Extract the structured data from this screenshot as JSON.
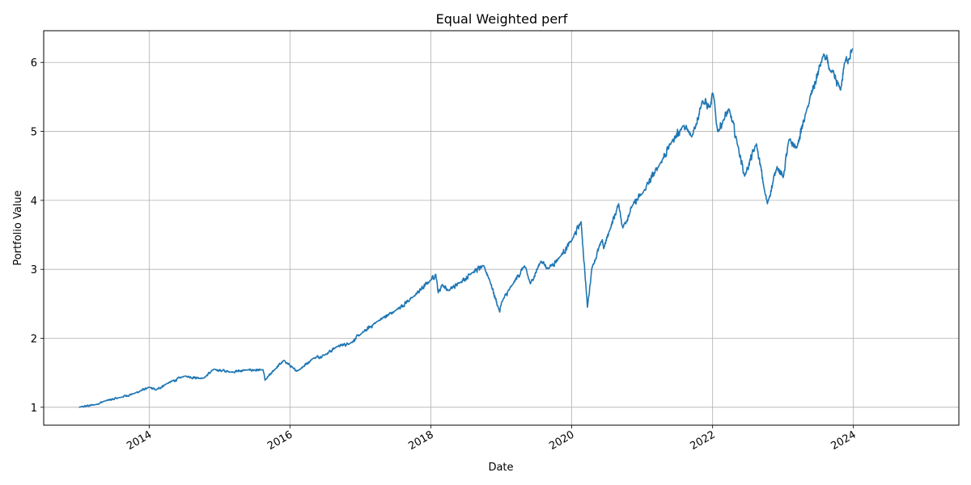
{
  "chart_data": {
    "type": "line",
    "title": "Equal Weighted perf",
    "xlabel": "Date",
    "ylabel": "Portfolio Value",
    "x_ticks": [
      "2014",
      "2016",
      "2018",
      "2020",
      "2022",
      "2024"
    ],
    "y_ticks": [
      "1",
      "2",
      "3",
      "4",
      "5",
      "6"
    ],
    "xlim": [
      "2012-07-03",
      "2025-07-01"
    ],
    "ylim": [
      0.74,
      6.46
    ],
    "grid": true,
    "series": [
      {
        "color": "#1f77b4",
        "x": [
          "2013-01-02",
          "2013-04-01",
          "2013-05-15",
          "2013-08-01",
          "2013-10-15",
          "2014-01-02",
          "2014-02-05",
          "2014-04-01",
          "2014-07-01",
          "2014-10-10",
          "2014-12-01",
          "2015-03-01",
          "2015-05-20",
          "2015-08-15",
          "2015-08-25",
          "2015-10-15",
          "2015-12-01",
          "2016-01-20",
          "2016-02-11",
          "2016-05-01",
          "2016-07-01",
          "2016-09-01",
          "2016-11-10",
          "2017-01-02",
          "2017-04-01",
          "2017-07-01",
          "2017-10-01",
          "2018-01-02",
          "2018-01-26",
          "2018-02-08",
          "2018-03-01",
          "2018-04-02",
          "2018-06-01",
          "2018-08-01",
          "2018-10-03",
          "2018-11-01",
          "2018-12-24",
          "2019-01-02",
          "2019-03-01",
          "2019-05-01",
          "2019-06-01",
          "2019-07-26",
          "2019-09-01",
          "2019-11-01",
          "2020-01-02",
          "2020-02-19",
          "2020-03-23",
          "2020-04-15",
          "2020-06-08",
          "2020-06-15",
          "2020-07-15",
          "2020-09-01",
          "2020-09-22",
          "2020-11-10",
          "2021-01-02",
          "2021-04-01",
          "2021-06-01",
          "2021-08-01",
          "2021-09-15",
          "2021-11-08",
          "2021-12-20",
          "2022-01-03",
          "2022-01-27",
          "2022-02-25",
          "2022-03-28",
          "2022-05-12",
          "2022-06-16",
          "2022-08-16",
          "2022-09-30",
          "2022-10-12",
          "2022-12-01",
          "2023-01-02",
          "2023-02-01",
          "2023-03-13",
          "2023-05-01",
          "2023-07-31",
          "2023-09-01",
          "2023-10-27",
          "2023-11-15",
          "2023-12-29"
        ],
        "values": [
          1.0,
          1.04,
          1.09,
          1.14,
          1.2,
          1.29,
          1.25,
          1.34,
          1.45,
          1.42,
          1.55,
          1.51,
          1.54,
          1.54,
          1.39,
          1.55,
          1.68,
          1.56,
          1.53,
          1.71,
          1.76,
          1.88,
          1.93,
          2.06,
          2.25,
          2.4,
          2.6,
          2.85,
          2.93,
          2.66,
          2.78,
          2.69,
          2.81,
          2.95,
          3.05,
          2.85,
          2.38,
          2.52,
          2.78,
          3.05,
          2.79,
          3.12,
          3.01,
          3.18,
          3.42,
          3.69,
          2.45,
          3.02,
          3.43,
          3.3,
          3.56,
          3.95,
          3.6,
          3.92,
          4.1,
          4.52,
          4.84,
          5.08,
          4.92,
          5.44,
          5.35,
          5.55,
          5.0,
          5.16,
          5.32,
          4.79,
          4.35,
          4.82,
          4.1,
          3.95,
          4.49,
          4.33,
          4.88,
          4.76,
          5.28,
          6.12,
          5.89,
          5.6,
          5.98,
          6.2
        ]
      }
    ]
  }
}
